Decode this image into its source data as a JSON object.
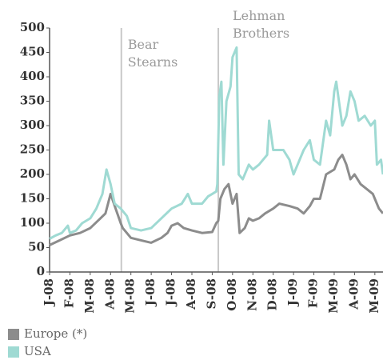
{
  "chart_data": {
    "type": "line",
    "xticks": [
      {
        "value": 0,
        "label": "J-08"
      },
      {
        "value": 1,
        "label": "F-08"
      },
      {
        "value": 2,
        "label": "M-08"
      },
      {
        "value": 3,
        "label": "A-08"
      },
      {
        "value": 4,
        "label": "M-08"
      },
      {
        "value": 5,
        "label": "J-08"
      },
      {
        "value": 6,
        "label": "J-08"
      },
      {
        "value": 7,
        "label": "A-08"
      },
      {
        "value": 8,
        "label": "S-08"
      },
      {
        "value": 9,
        "label": "O-08"
      },
      {
        "value": 10,
        "label": "N-08"
      },
      {
        "value": 11,
        "label": "D-08"
      },
      {
        "value": 12,
        "label": "J-09"
      },
      {
        "value": 13,
        "label": "F-09"
      },
      {
        "value": 14,
        "label": "M-09"
      },
      {
        "value": 15,
        "label": "A-09"
      },
      {
        "value": 16,
        "label": "M-09"
      }
    ],
    "xlim": [
      0,
      16.4
    ],
    "ylim": [
      0,
      500
    ],
    "yticks": [
      0,
      50,
      100,
      150,
      200,
      250,
      300,
      350,
      400,
      450,
      500
    ],
    "annotations": [
      {
        "text": "Bear\nStearns",
        "x": 3.53
      },
      {
        "text": "Lehman\nBrothers",
        "x": 8.3
      }
    ],
    "legend": "bottom-left",
    "series": [
      {
        "name": "Europe (*)",
        "color": "#8c8c8c",
        "x": [
          0,
          0.5,
          1,
          1.5,
          2,
          2.5,
          2.75,
          3,
          3.25,
          3.5,
          3.6,
          4,
          4.5,
          5,
          5.5,
          5.8,
          6,
          6.3,
          6.6,
          7,
          7.5,
          8,
          8.2,
          8.3,
          8.4,
          8.6,
          8.8,
          9,
          9.2,
          9.35,
          9.6,
          9.8,
          10,
          10.3,
          10.6,
          11,
          11.3,
          11.8,
          12.2,
          12.5,
          12.8,
          13,
          13.3,
          13.6,
          14,
          14.2,
          14.4,
          14.6,
          14.8,
          15,
          15.3,
          15.6,
          15.9,
          16,
          16.2,
          16.4
        ],
        "values": [
          55,
          65,
          75,
          80,
          90,
          110,
          120,
          160,
          130,
          100,
          90,
          70,
          65,
          60,
          70,
          80,
          95,
          100,
          90,
          85,
          80,
          82,
          100,
          105,
          150,
          170,
          180,
          140,
          160,
          80,
          90,
          110,
          105,
          110,
          120,
          130,
          140,
          135,
          130,
          120,
          135,
          150,
          150,
          200,
          210,
          230,
          240,
          220,
          190,
          200,
          180,
          170,
          160,
          150,
          130,
          120
        ]
      },
      {
        "name": "USA",
        "color": "#9fdad3",
        "x": [
          0,
          0.3,
          0.6,
          0.9,
          1,
          1.3,
          1.6,
          2,
          2.3,
          2.6,
          2.8,
          3,
          3.2,
          3.5,
          3.8,
          4,
          4.5,
          5,
          5.5,
          6,
          6.5,
          6.8,
          7,
          7.5,
          7.8,
          8,
          8.2,
          8.25,
          8.35,
          8.45,
          8.55,
          8.7,
          8.9,
          9,
          9.2,
          9.3,
          9.5,
          9.8,
          10,
          10.3,
          10.7,
          10.8,
          11,
          11.5,
          11.8,
          12,
          12.2,
          12.5,
          12.8,
          13,
          13.3,
          13.6,
          13.8,
          14,
          14.1,
          14.4,
          14.6,
          14.8,
          15,
          15.2,
          15.5,
          15.8,
          16,
          16.1,
          16.3,
          16.4
        ],
        "values": [
          68,
          75,
          80,
          95,
          80,
          85,
          100,
          110,
          130,
          160,
          210,
          180,
          140,
          130,
          115,
          90,
          85,
          90,
          110,
          130,
          140,
          160,
          140,
          140,
          155,
          160,
          165,
          180,
          360,
          390,
          220,
          350,
          380,
          440,
          460,
          200,
          190,
          220,
          210,
          220,
          240,
          310,
          250,
          250,
          230,
          200,
          220,
          250,
          270,
          230,
          220,
          310,
          280,
          370,
          390,
          300,
          320,
          370,
          350,
          310,
          320,
          300,
          310,
          220,
          230,
          200
        ]
      }
    ]
  }
}
